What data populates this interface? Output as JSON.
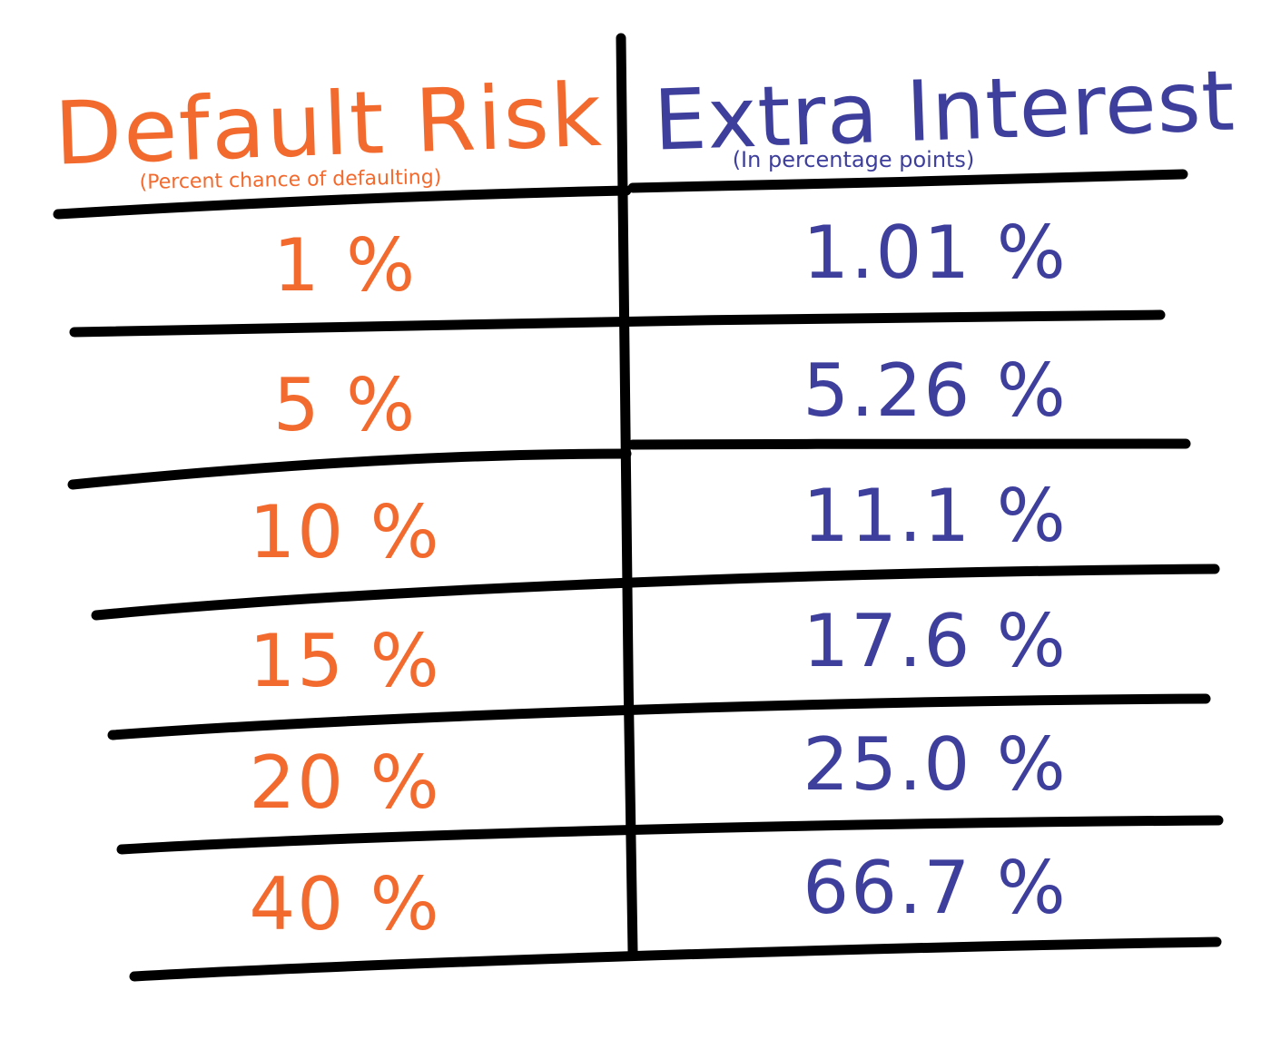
{
  "table": {
    "headers": {
      "left": "Default Risk",
      "left_note": "(Percent chance of defaulting)",
      "right": "Extra Interest",
      "right_note": "(In percentage points)"
    },
    "rows": [
      {
        "default_risk": "1 %",
        "extra_interest": "1.01 %"
      },
      {
        "default_risk": "5 %",
        "extra_interest": "5.26 %"
      },
      {
        "default_risk": "10 %",
        "extra_interest": "11.1 %"
      },
      {
        "default_risk": "15 %",
        "extra_interest": "17.6 %"
      },
      {
        "default_risk": "20 %",
        "extra_interest": "25.0 %"
      },
      {
        "default_risk": "40 %",
        "extra_interest": "66.7 %"
      }
    ],
    "colors": {
      "left_ink": "#f26a2e",
      "right_ink": "#3e3f9c",
      "rule_ink": "#000000"
    }
  }
}
